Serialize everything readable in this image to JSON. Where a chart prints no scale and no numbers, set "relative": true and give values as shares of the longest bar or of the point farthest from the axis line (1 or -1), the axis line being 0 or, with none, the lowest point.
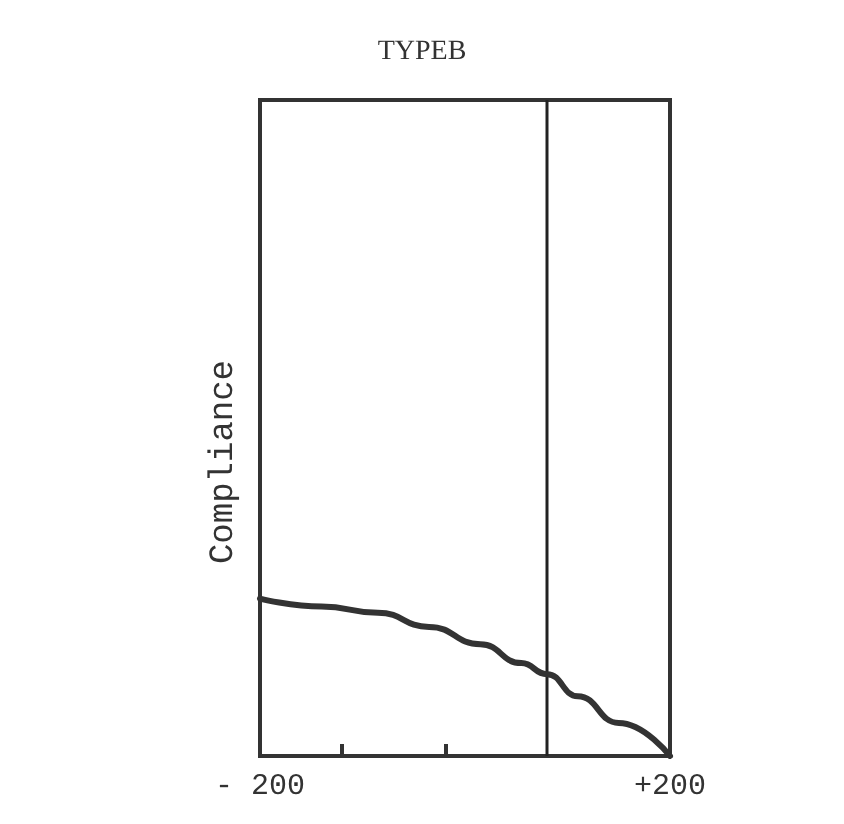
{
  "chart_data": {
    "type": "line",
    "title": "TYPEB",
    "ylabel": "Compliance",
    "relative": true,
    "x": [
      -200,
      -140,
      -85,
      -35,
      15,
      55,
      80,
      110,
      150,
      200
    ],
    "series": [
      {
        "color": "#333333",
        "values": [
          1,
          0.95,
          0.91,
          0.82,
          0.71,
          0.59,
          0.52,
          0.38,
          0.21,
          0
        ]
      }
    ],
    "xlim": [
      -200,
      200
    ],
    "xticks": [
      {
        "value": -200,
        "label": "- 200"
      },
      {
        "value": -120,
        "label": null
      },
      {
        "value": -20,
        "label": null
      },
      {
        "value": 200,
        "label": "+200"
      }
    ],
    "ref_lines": [
      {
        "axis": "x",
        "value": 80,
        "color": "#222222",
        "line_style": "solid"
      }
    ],
    "grid": false,
    "marker": "none",
    "line_style": "solid"
  }
}
